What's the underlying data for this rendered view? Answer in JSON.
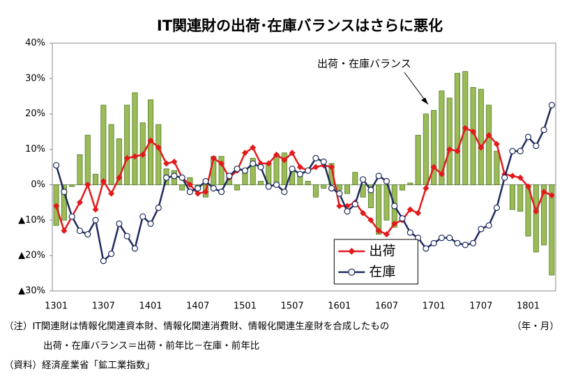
{
  "chart_data": {
    "type": "combo",
    "title": "IT関連財の出荷･在庫バランスはさらに悪化",
    "categories": [
      "1301",
      null,
      null,
      null,
      null,
      null,
      "1307",
      null,
      null,
      null,
      null,
      null,
      "1401",
      null,
      null,
      null,
      null,
      null,
      "1407",
      null,
      null,
      null,
      null,
      null,
      "1501",
      null,
      null,
      null,
      null,
      null,
      "1507",
      null,
      null,
      null,
      null,
      null,
      "1601",
      null,
      null,
      null,
      null,
      null,
      "1607",
      null,
      null,
      null,
      null,
      null,
      "1701",
      null,
      null,
      null,
      null,
      null,
      "1707",
      null,
      null,
      null,
      null,
      null,
      "1801",
      null,
      null,
      null
    ],
    "series": [
      {
        "name": "出荷・在庫バランス",
        "type": "bar",
        "color": "#9bbb59",
        "edge": "#4f7a21",
        "values": [
          -11.5,
          -10,
          -0.5,
          8.5,
          14,
          3,
          22.5,
          17,
          13,
          22.5,
          26,
          17.5,
          24,
          17,
          4.5,
          4,
          -1.5,
          2,
          -1.5,
          -3.5,
          8,
          8,
          3,
          -1.5,
          4.5,
          7.5,
          1,
          6,
          8.5,
          9,
          4.5,
          3.5,
          1,
          -3.5,
          -1,
          6,
          -1.5,
          -2.5,
          3.5,
          -3.5,
          -6.5,
          -14,
          -10,
          -12,
          -1.5,
          0.5,
          14,
          20,
          21,
          26.5,
          24.5,
          31.5,
          32,
          27.5,
          27,
          22.5,
          9.5,
          0,
          -7,
          -7.5,
          -14.5,
          -19,
          -17,
          -25.5
        ]
      },
      {
        "name": "出荷",
        "type": "line",
        "marker": "diamond",
        "color": "#e3191c",
        "values": [
          -6,
          -13,
          -9,
          -5,
          0,
          -7,
          1,
          -2.5,
          2,
          7.5,
          8,
          8.5,
          12.5,
          10.5,
          6,
          6.5,
          2,
          0,
          -2.5,
          -2,
          7.5,
          6,
          2,
          4,
          9,
          10.5,
          6,
          6,
          8.5,
          7,
          9,
          5,
          4,
          5,
          5.5,
          5,
          -6,
          -6,
          -5,
          -8,
          -10,
          -13,
          -14,
          -11,
          -10,
          -7,
          -8,
          -1,
          5,
          3,
          10,
          9.5,
          16,
          15,
          10.5,
          14,
          11.5,
          3,
          2.5,
          2,
          -0.5,
          -7.5,
          -2,
          -3
        ]
      },
      {
        "name": "在庫",
        "type": "line",
        "marker": "circle",
        "color": "#1c2a5c",
        "values": [
          5.5,
          -2,
          -9,
          -13,
          -14,
          -10,
          -21.5,
          -19.5,
          -11,
          -14.5,
          -18,
          -9,
          -11,
          -6.5,
          2,
          2.5,
          2,
          -2,
          -1,
          1,
          -1,
          -2,
          2.5,
          4.5,
          4,
          6,
          5,
          -0.5,
          0,
          -2,
          4.5,
          3,
          4,
          7.5,
          6.5,
          -1,
          -2.5,
          -7.5,
          -5.5,
          1.5,
          -1.5,
          2.5,
          1,
          -6,
          -9.5,
          -13.5,
          -15,
          -18,
          -16.5,
          -15,
          -15,
          -16.5,
          -17,
          -16.5,
          -12.5,
          -11.5,
          -6.5,
          2,
          9.5,
          9.5,
          13.5,
          11,
          15.5,
          22.5
        ]
      }
    ],
    "ylim": [
      -30,
      40
    ],
    "yticks": [
      {
        "value": -30,
        "label": "▲30%"
      },
      {
        "value": -20,
        "label": "▲20%"
      },
      {
        "value": -10,
        "label": "▲10%"
      },
      {
        "value": 0,
        "label": "0%"
      },
      {
        "value": 10,
        "label": "10%"
      },
      {
        "value": 20,
        "label": "20%"
      },
      {
        "value": 30,
        "label": "30%"
      },
      {
        "value": 40,
        "label": "40%"
      }
    ],
    "grid": false,
    "legend": "lower center",
    "x_unit": "（年・月）",
    "notes": [
      "（注）IT関連財は情報化関連資本財、情報化関連消費財、情報化関連生産財を合成したもの",
      "出荷・在庫バランス＝出荷・前年比－在庫・前年比",
      "（資料）経済産業省「鉱工業指数」"
    ]
  }
}
